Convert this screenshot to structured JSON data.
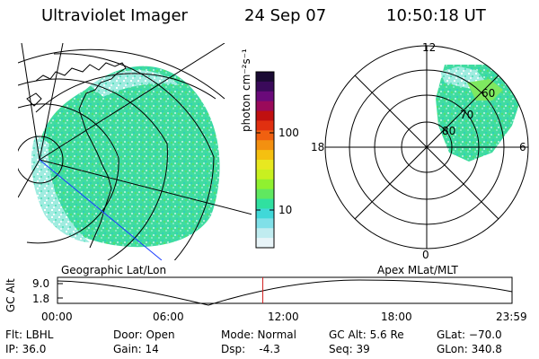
{
  "header": {
    "instrument": "Ultraviolet Imager",
    "date": "24 Sep 07",
    "time": "10:50:18 UT"
  },
  "panels": {
    "geo_label": "Geographic Lat/Lon",
    "apex_label": "Apex MLat/MLT"
  },
  "colorbar": {
    "label": "photon cm⁻²s⁻¹",
    "ticks": [
      "100",
      "10"
    ],
    "colors": [
      "#1a0a33",
      "#3a0a5a",
      "#6a0a7a",
      "#9a0a5a",
      "#c01010",
      "#e03010",
      "#f06010",
      "#f39010",
      "#f5c010",
      "#e8e820",
      "#c8f020",
      "#90f030",
      "#60e860",
      "#30e0a0",
      "#40d8d8",
      "#80e0e8",
      "#c0ecf0",
      "#e8f4f8"
    ]
  },
  "polar": {
    "mlt_labels": [
      "12",
      "18",
      "6",
      "0"
    ],
    "mlat_labels": [
      "60",
      "70",
      "80"
    ]
  },
  "timeline": {
    "ylabel": "GC Alt",
    "y_ticks": [
      "9.0",
      "1.8"
    ],
    "x_ticks": [
      "00:00",
      "06:00",
      "12:00",
      "18:00",
      "23:59"
    ],
    "current_time_hours": 10.84,
    "current_color": "#d02020"
  },
  "footer": {
    "filter": "Flt: LBHL",
    "ip": "IP: 36.0",
    "door": "Door: Open",
    "gain": "Gain: 14",
    "mode": "Mode: Normal",
    "dsp": "Dsp:    -4.3",
    "gc_alt": "GC Alt: 5.6 Re",
    "seq": "Seq: 39",
    "glat": "GLat: −70.0",
    "glon": "GLon: 340.8"
  }
}
